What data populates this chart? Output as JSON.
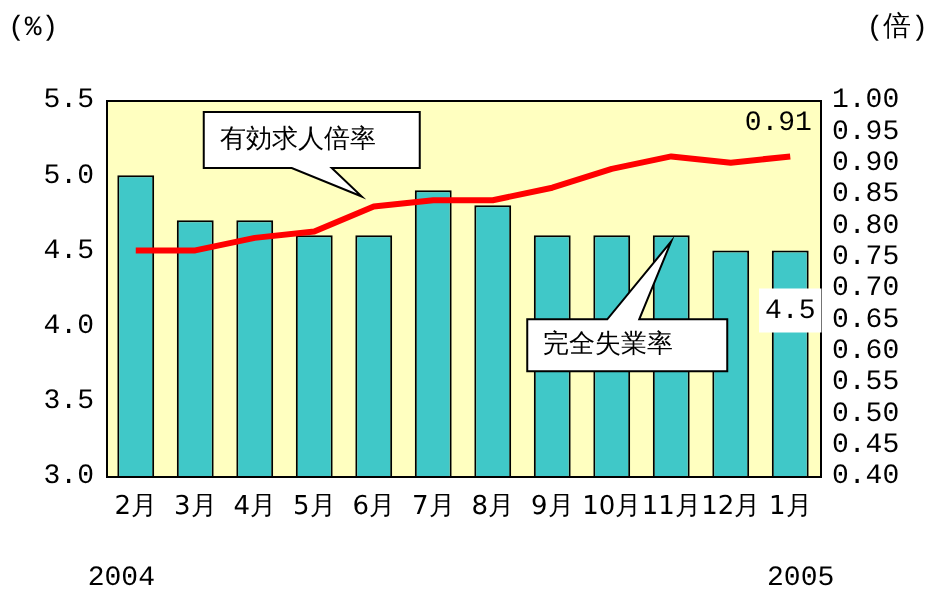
{
  "chart_data": {
    "type": "bar",
    "categories": [
      "2月",
      "3月",
      "4月",
      "5月",
      "6月",
      "7月",
      "8月",
      "9月",
      "10月",
      "11月",
      "12月",
      "1月"
    ],
    "series": [
      {
        "name": "完全失業率",
        "color": "#40c8c8",
        "values": [
          5.0,
          4.7,
          4.7,
          4.6,
          4.6,
          4.9,
          4.8,
          4.6,
          4.6,
          4.6,
          4.5,
          4.5
        ],
        "value_labels": [
          null,
          null,
          null,
          null,
          null,
          null,
          null,
          null,
          null,
          null,
          null,
          "4.5"
        ]
      },
      {
        "name": "有効求人倍率",
        "type": "line",
        "axis": "y2",
        "color": "#ff0000",
        "values": [
          0.76,
          0.76,
          0.78,
          0.79,
          0.83,
          0.84,
          0.84,
          0.86,
          0.89,
          0.91,
          0.9,
          0.91
        ],
        "value_labels": [
          null,
          null,
          null,
          null,
          null,
          null,
          null,
          null,
          null,
          null,
          null,
          "0.91"
        ]
      }
    ],
    "ylabel": "(%)",
    "y2label": "(倍)",
    "ylim": [
      3.0,
      5.5
    ],
    "yticks": [
      {
        "value": 3.0,
        "label": "3.0"
      },
      {
        "value": 3.5,
        "label": "3.5"
      },
      {
        "value": 4.0,
        "label": "4.0"
      },
      {
        "value": 4.5,
        "label": "4.5"
      },
      {
        "value": 5.0,
        "label": "5.0"
      },
      {
        "value": 5.5,
        "label": "5.5"
      }
    ],
    "y2lim": [
      0.4,
      1.0
    ],
    "y2ticks": [
      {
        "value": 0.4,
        "label": "0.40"
      },
      {
        "value": 0.45,
        "label": "0.45"
      },
      {
        "value": 0.5,
        "label": "0.50"
      },
      {
        "value": 0.55,
        "label": "0.55"
      },
      {
        "value": 0.6,
        "label": "0.60"
      },
      {
        "value": 0.65,
        "label": "0.65"
      },
      {
        "value": 0.7,
        "label": "0.70"
      },
      {
        "value": 0.75,
        "label": "0.75"
      },
      {
        "value": 0.8,
        "label": "0.80"
      },
      {
        "value": 0.85,
        "label": "0.85"
      },
      {
        "value": 0.9,
        "label": "0.90"
      },
      {
        "value": 0.95,
        "label": "0.95"
      },
      {
        "value": 1.0,
        "label": "1.00"
      }
    ],
    "annotations": [
      "2004",
      "2005"
    ],
    "grid": false,
    "legend": false,
    "marker": "none",
    "line_style": "solid"
  }
}
